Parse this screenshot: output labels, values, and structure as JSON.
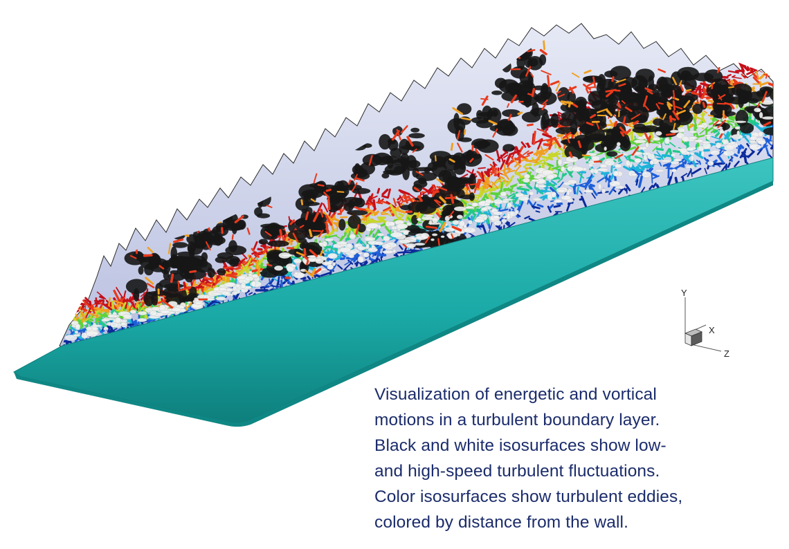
{
  "figure": {
    "caption_lines": [
      "Visualization of energetic and vortical",
      "motions in a turbulent boundary layer.",
      "Black and white isosurfaces show low-",
      "and high-speed turbulent fluctuations.",
      "Color isosurfaces show turbulent eddies,",
      "colored by distance from the wall."
    ]
  },
  "axes_triad": {
    "y_label": "Y",
    "x_label": "X",
    "z_label": "Z"
  },
  "colors": {
    "wall": "#1aa9a6",
    "wall_edge": "#0f7e7c",
    "caption": "#1b2c6b",
    "low_speed_isosurface": "#161616",
    "high_speed_isosurface": "#f2f2f2",
    "outer_contour": "#c9cfe6",
    "eddy_scale": [
      "#0b2a9b",
      "#1d5ed8",
      "#1fb3d8",
      "#22c98a",
      "#5bd33a",
      "#c8d62a",
      "#f0a020",
      "#e83a1c",
      "#c4101a"
    ]
  }
}
